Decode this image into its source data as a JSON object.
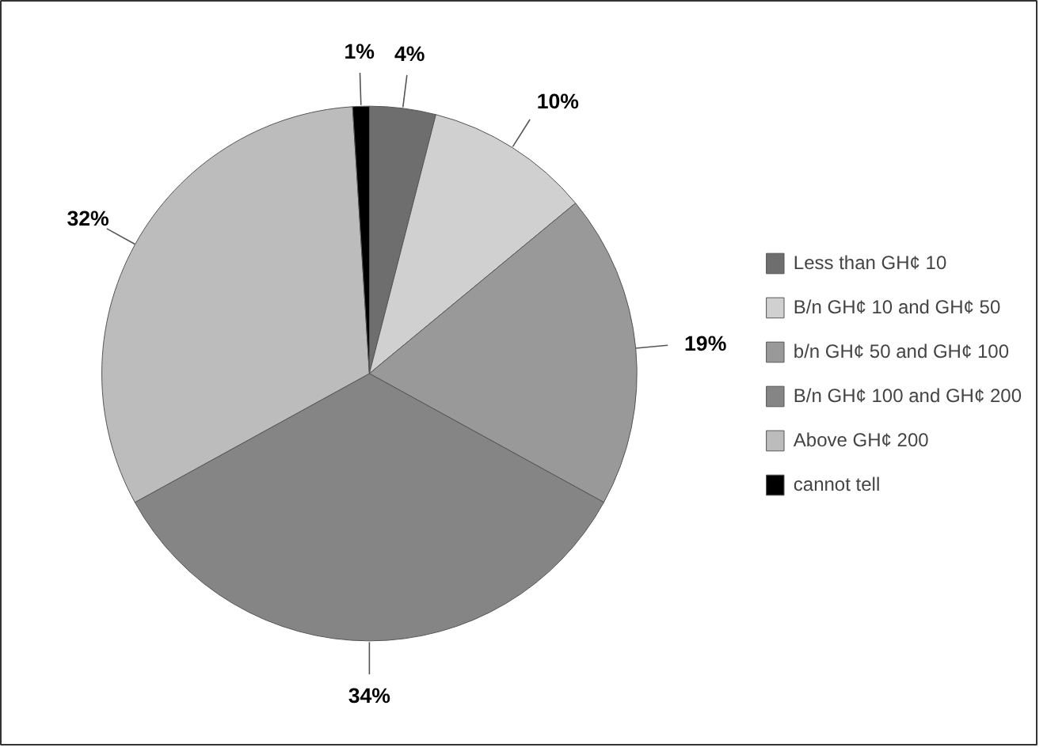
{
  "chart_data": {
    "type": "pie",
    "categories": [
      "Less than GH¢ 10",
      "B/n GH¢ 10 and GH¢ 50",
      "b/n GH¢ 50 and GH¢ 100",
      "B/n GH¢ 100 and GH¢ 200",
      "Above GH¢ 200",
      "cannot tell"
    ],
    "values": [
      4,
      10,
      19,
      34,
      32,
      1
    ],
    "colors": [
      "#6e6e6e",
      "#d0d0d0",
      "#999999",
      "#858585",
      "#bcbcbc",
      "#000000"
    ],
    "value_labels": [
      "4%",
      "10%",
      "19%",
      "34%",
      "32%",
      "1%"
    ],
    "legend": "right"
  }
}
